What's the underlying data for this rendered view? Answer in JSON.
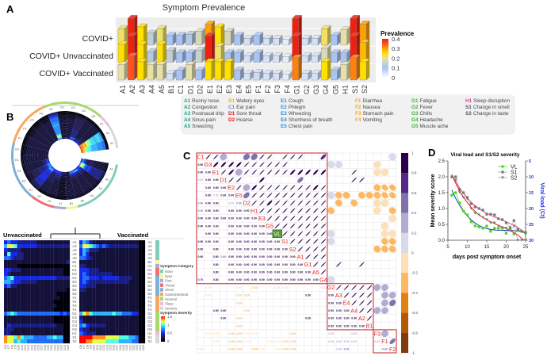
{
  "panel_labels": {
    "a": "A",
    "b": "B",
    "c": "C",
    "d": "D"
  },
  "symptom_legend": {
    "columns": [
      [
        {
          "code": "A1",
          "label": "Runny nose",
          "group": "A"
        },
        {
          "code": "A2",
          "label": "Congestion",
          "group": "A"
        },
        {
          "code": "A3",
          "label": "Postnasal drip",
          "group": "A"
        },
        {
          "code": "A4",
          "label": "Sinus pain",
          "group": "A"
        },
        {
          "code": "A5",
          "label": "Sneezing",
          "group": "A"
        }
      ],
      [
        {
          "code": "B1",
          "label": "Watery eyes",
          "group": "B"
        },
        {
          "code": "C1",
          "label": "Ear pain",
          "group": "C"
        },
        {
          "code": "D1",
          "label": "Sore throat",
          "group": "D"
        },
        {
          "code": "D2",
          "label": "Hoarse",
          "group": "D"
        }
      ],
      [
        {
          "code": "E1",
          "label": "Cough",
          "group": "E"
        },
        {
          "code": "E2",
          "label": "Phlegm",
          "group": "E"
        },
        {
          "code": "E3",
          "label": "Wheezing",
          "group": "E"
        },
        {
          "code": "E4",
          "label": "Shortness of breath",
          "group": "E"
        },
        {
          "code": "E5",
          "label": "Chest pain",
          "group": "E"
        }
      ],
      [
        {
          "code": "F1",
          "label": "Diarrhea",
          "group": "F"
        },
        {
          "code": "F2",
          "label": "Nausea",
          "group": "F"
        },
        {
          "code": "F3",
          "label": "Stomach pain",
          "group": "F"
        },
        {
          "code": "F4",
          "label": "Vomiting",
          "group": "F"
        }
      ],
      [
        {
          "code": "G1",
          "label": "Fatigue",
          "group": "G"
        },
        {
          "code": "G2",
          "label": "Fever",
          "group": "G"
        },
        {
          "code": "G3",
          "label": "Chills",
          "group": "G"
        },
        {
          "code": "G4",
          "label": "Headache",
          "group": "G"
        },
        {
          "code": "G5",
          "label": "Muscle ache",
          "group": "G"
        }
      ],
      [
        {
          "code": "H1",
          "label": "Sleep disruption",
          "group": "H"
        },
        {
          "code": "S1",
          "label": "Change in smell",
          "group": "S"
        },
        {
          "code": "S2",
          "label": "Change in taste",
          "group": "S"
        }
      ]
    ],
    "group_colors": {
      "A": "#1aa886",
      "B": "#e8c020",
      "C": "#7b7bdf",
      "D": "#e02020",
      "E": "#2a90e0",
      "F": "#f5a623",
      "G": "#3cb83c",
      "H": "#e0409a",
      "S": "#555555"
    }
  },
  "chart_data": [
    {
      "type": "heatmap",
      "title": "Symptom Prevalence",
      "rows": [
        "COVID+",
        "COVID+ Unvaccinated",
        "COVID+ Vaccinated"
      ],
      "categories": [
        "A1",
        "A2",
        "A3",
        "A4",
        "A5",
        "B1",
        "C1",
        "D1",
        "D2",
        "E1",
        "E2",
        "E3",
        "E4",
        "E5",
        "F1",
        "F2",
        "F3",
        "F4",
        "G1",
        "G2",
        "G3",
        "G4",
        "G5",
        "H1",
        "S1",
        "S2"
      ],
      "values": [
        [
          0.22,
          0.4,
          0.25,
          0.14,
          0.22,
          0.1,
          0.1,
          0.12,
          0.17,
          0.3,
          0.25,
          0.17,
          0.1,
          0.05,
          0.1,
          0.05,
          0.05,
          0.03,
          0.4,
          0.05,
          0.05,
          0.22,
          0.1,
          0.2,
          0.4,
          0.3
        ],
        [
          0.25,
          0.4,
          0.25,
          0.12,
          0.25,
          0.14,
          0.1,
          0.1,
          0.15,
          0.4,
          0.22,
          0.1,
          0.1,
          0.05,
          0.1,
          0.05,
          0.05,
          0.03,
          0.4,
          0.05,
          0.05,
          0.18,
          0.1,
          0.1,
          0.4,
          0.28
        ],
        [
          0.2,
          0.35,
          0.25,
          0.2,
          0.2,
          0.05,
          0.1,
          0.2,
          0.1,
          0.25,
          0.25,
          0.25,
          0.1,
          0.05,
          0.06,
          0.05,
          0.05,
          0.03,
          0.32,
          0.05,
          0.05,
          0.25,
          0.1,
          0.2,
          0.32,
          0.25
        ]
      ],
      "legend_title": "Prevalence",
      "legend_ticks": [
        "0.4",
        "0.3",
        "0.2",
        "0.1",
        "0"
      ],
      "range": [
        0,
        0.4
      ]
    },
    {
      "type": "heatmap",
      "rows": [
        "A1",
        "A2",
        "A3",
        "A4",
        "A5",
        "B1",
        "C1",
        "D1",
        "D2",
        "E1",
        "E2",
        "E3",
        "E4",
        "E5",
        "F1",
        "F2",
        "F3",
        "F4",
        "G1",
        "G2",
        "G3",
        "G4",
        "G5",
        "H1",
        "S1",
        "S2"
      ],
      "columns": [
        "D6",
        "D7",
        "D8",
        "D9",
        "D10",
        "D11",
        "D12",
        "D13",
        "D14",
        "D15",
        "D16",
        "D17",
        "D18",
        "D19",
        "D20",
        "D21",
        "D22",
        "D23",
        "D24",
        "D25"
      ],
      "value_scale_max": 1.5,
      "groups": [
        {
          "title": "Unvaccinated",
          "rows_digits": [
            "34332222221111111111",
            "57763333332222222222",
            "32222111111111111111",
            "26332211111111111111",
            "44322211111111111111",
            "11111111111111111112",
            "11110000000000000000",
            "33222111111111111100",
            "32111111111111111100",
            "45633333333333332222",
            "55433222221111111111",
            "34221111111111111111",
            "11111111111111111110",
            "11111111111111110000",
            "11111111111111111000",
            "11111111111111100000",
            "11111111111111110000",
            "11111111111111100000",
            "45654444444444444343",
            "11111111111111100000",
            "11111111111111100000",
            "13222222222222221100",
            "22211111111111111100",
            "22111111111111111100",
            "87768655544445565500",
            "87756554444444444400"
          ]
        },
        {
          "title": "Vaccinated",
          "rows_digits": [
            "35421111111111111100",
            "47765434322222222200",
            "35422211111111111100",
            "35311111111111111100",
            "44321111111111111100",
            "11111111111111111100",
            "22111111111111111100",
            "33322211111111111100",
            "34322222221111111100",
            "34433323333322221100",
            "34322222222222211100",
            "33222111111111111100",
            "22111111111111111100",
            "11111111111111111100",
            "11111111111111111100",
            "11111111111111111100",
            "11111111111111111100",
            "11111111111111111100",
            "57865555556554443300",
            "21111111111111111100",
            "31111111111111111100",
            "45322222111111111100",
            "32211111111111111100",
            "43222111111111111100",
            "99998888777766655400",
            "99887777666655554400"
          ]
        }
      ],
      "category_legend": {
        "title": "Symptom Category",
        "items": [
          {
            "name": "Nose",
            "color": "#7fcdbb",
            "group": "A"
          },
          {
            "name": "Eyes",
            "color": "#f5f59a",
            "group": "B"
          },
          {
            "name": "Ears",
            "color": "#b0a8d8",
            "group": "C"
          },
          {
            "name": "Throat",
            "color": "#f07070",
            "group": "D"
          },
          {
            "name": "Chest",
            "color": "#7fb0d8",
            "group": "E"
          },
          {
            "name": "Gastrointestinal",
            "color": "#f5a860",
            "group": "F"
          },
          {
            "name": "General",
            "color": "#a8d870",
            "group": "G"
          },
          {
            "name": "Sleep",
            "color": "#f5b8d8",
            "group": "H"
          },
          {
            "name": "Sensory",
            "color": "#d8d8d8",
            "group": "S"
          }
        ]
      },
      "severity_legend": {
        "title": "Symptom Severity",
        "ticks": [
          "1.5",
          "1",
          "0.5",
          "0"
        ]
      }
    },
    {
      "type": "heatmap",
      "subtype": "correlation",
      "labels": [
        "C1",
        "G3",
        "E1",
        "D1",
        "E2",
        "E5",
        "D2",
        "H1",
        "E3",
        "G5",
        "VL",
        "S1",
        "S2",
        "A1",
        "G1",
        "A5",
        "G4",
        "G2",
        "A3",
        "E4",
        "A4",
        "A2",
        "B1",
        "F3",
        "F1",
        "F2"
      ],
      "highlight": "VL",
      "blocks": [
        [
          0,
          16
        ],
        [
          17,
          22
        ],
        [
          23,
          25
        ]
      ],
      "upper_digits": [
        "9930044990999007000000002",
        "888899999900000220000b00",
        "98399999988888000900bb0",
        "9900800006000000990000",
        "938999999989000000cdd",
        "599999999992cc0cccdd",
        "99899999990c0c00bb0",
        "999999999c00000b0c",
        "9999999900000000b",
        "99999990000000b0",
        "9999992000000bb",
        "999992000000ccc",
        "9999000000ccc",
        "999000000000",
        "99090090000",
        "9000000000",
        "200000000",
        "99999330",
        "9999033",
        "999034",
        "99330",
        "9000",
        "000",
        "30",
        "6",
        ""
      ],
      "colorbar_ticks": [
        "1",
        "0.8",
        "0.6",
        "0.4",
        "0.2",
        "0",
        "-0.2",
        "-0.4",
        "-0.6",
        "-0.8",
        "-1"
      ],
      "range": [
        -1,
        1
      ]
    },
    {
      "type": "line",
      "title": "Viral load and S1/S2 severity",
      "xlabel": "days post symptom onset",
      "ylabel": "Mean severity score",
      "y2label": "Viral load (Ct)",
      "xlim": [
        5,
        25
      ],
      "ylim": [
        0,
        2.5
      ],
      "y2lim": [
        30,
        5
      ],
      "xticks": [
        "5",
        "10",
        "15",
        "20",
        "25"
      ],
      "yticks": [
        "0.0",
        "0.5",
        "1.0",
        "1.5",
        "2.0",
        "2.5"
      ],
      "y2ticks": [
        "5",
        "10",
        "15",
        "20",
        "25",
        "30"
      ],
      "x": [
        6,
        7,
        8,
        9,
        10,
        11,
        12,
        13,
        14,
        15,
        16,
        17,
        18,
        19,
        20,
        21,
        22,
        23,
        24,
        25
      ],
      "series": [
        {
          "name": "VL",
          "axis": "right",
          "color": "#44dd22",
          "fit_color": "#2233bb",
          "values": [
            15.8,
            15,
            18.2,
            20.8,
            22,
            24.2,
            25.5,
            25.8,
            26.2,
            25.5,
            27.2,
            26.2,
            26.2,
            26.2,
            27.8,
            26.5,
            28,
            26.7,
            27.2,
            27.8
          ]
        },
        {
          "name": "S1",
          "axis": "left",
          "color": "#777777",
          "fit_color": "#ee4488",
          "values": [
            2.0,
            2.0,
            1.6,
            1.5,
            1.35,
            1.15,
            1.05,
            1.0,
            0.95,
            0.82,
            0.82,
            0.8,
            0.68,
            0.65,
            0.55,
            0.4,
            0.62,
            0.35,
            0.28,
            0.25
          ]
        },
        {
          "name": "S2",
          "axis": "left",
          "color": "#777777",
          "fit_color": "#ee2222",
          "values": [
            2.0,
            1.9,
            1.52,
            1.35,
            1.3,
            1.0,
            0.85,
            0.8,
            0.72,
            0.65,
            0.55,
            0.55,
            0.45,
            0.4,
            0.38,
            0.3,
            0.45,
            0,
            0,
            0
          ]
        }
      ],
      "legend_position": "top-right"
    }
  ]
}
